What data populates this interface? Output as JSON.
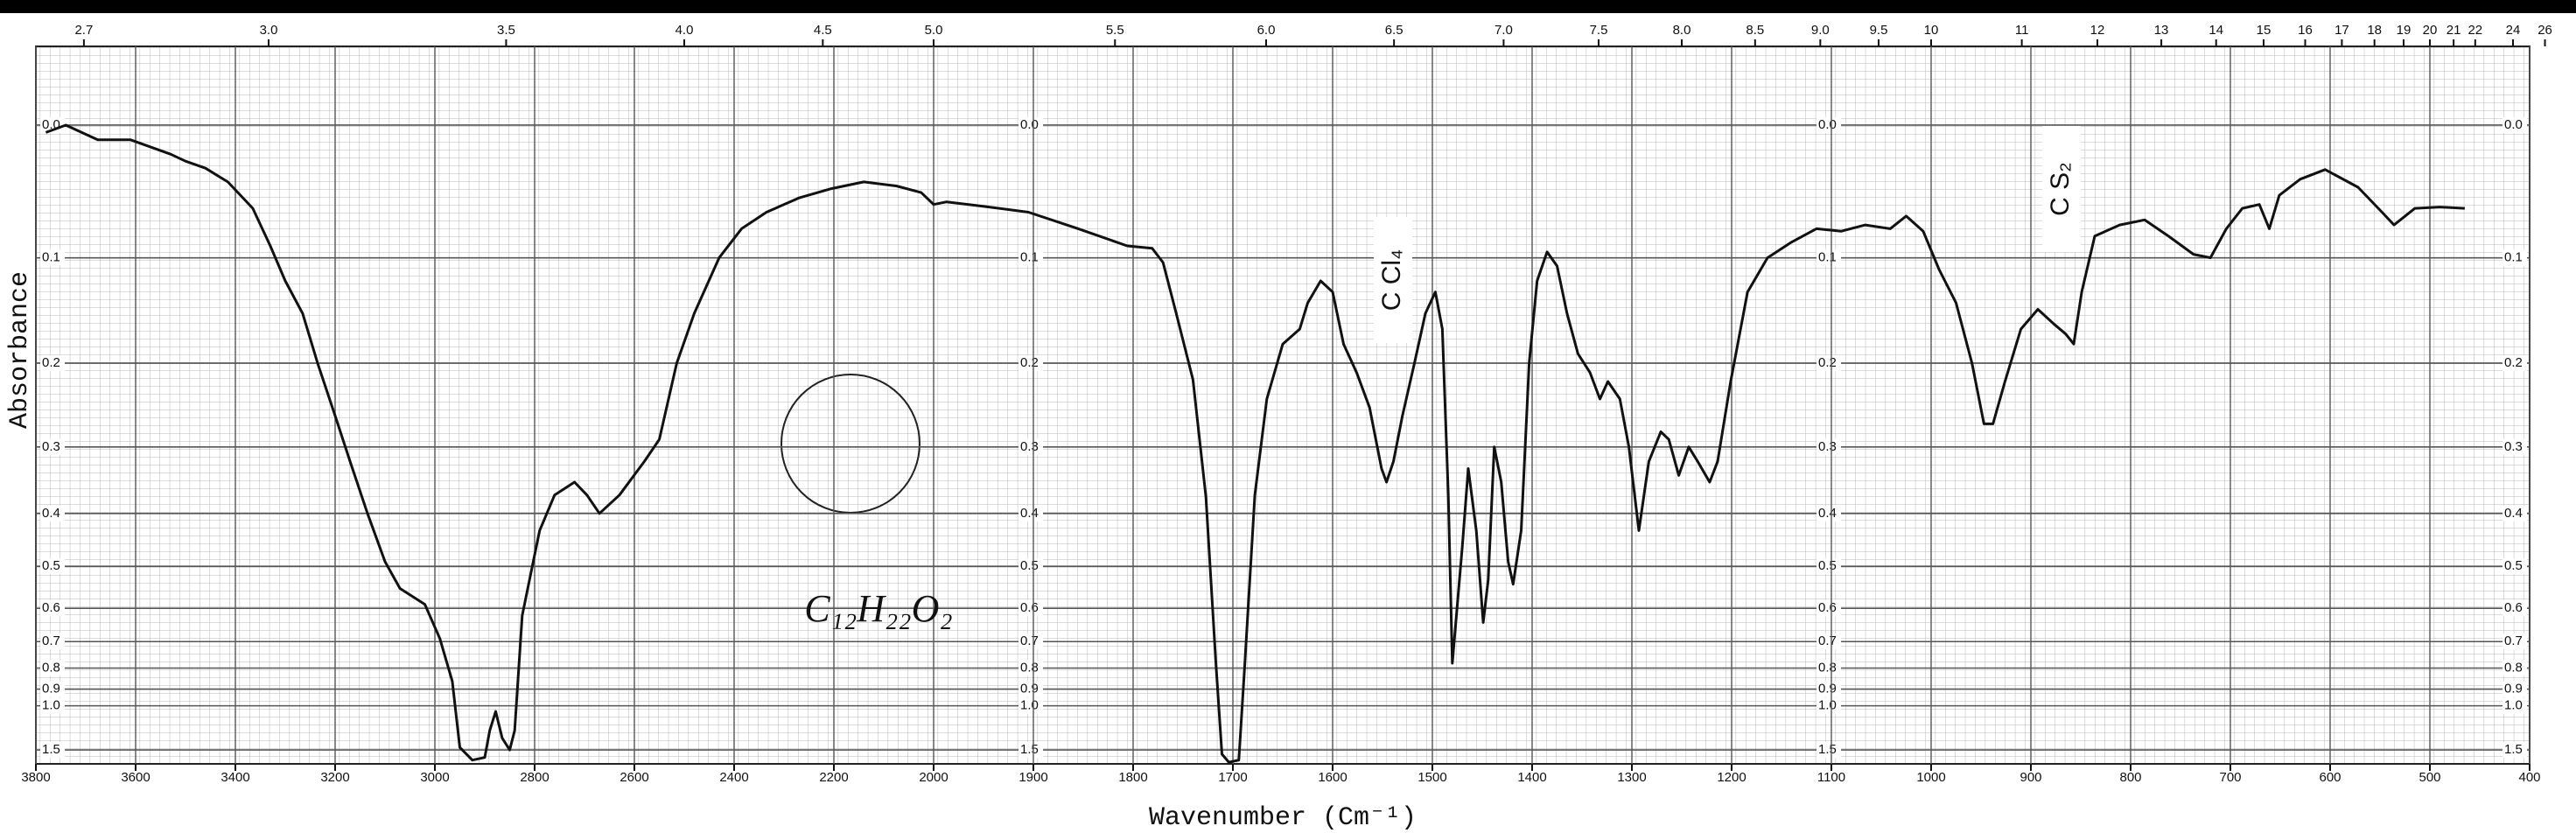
{
  "chart_data": {
    "type": "line",
    "xlabel": "Wavenumber (Cm⁻¹)",
    "ylabel": "Absorbance",
    "annotations": [
      "C Cl₄",
      "C S₂",
      "C₁₂H₂₂O₂"
    ],
    "color": "#111111",
    "grid": true,
    "yscale": "transmittance",
    "x_break": 2000,
    "xlim": [
      3800,
      400
    ],
    "ylim": [
      2,
      -0.05
    ],
    "xticks": [
      3800,
      3600,
      3400,
      3200,
      3000,
      2800,
      2600,
      2400,
      2200,
      2000,
      1900,
      1800,
      1700,
      1600,
      1500,
      1400,
      1300,
      1200,
      1100,
      1000,
      900,
      800,
      700,
      600,
      500,
      400
    ],
    "yticks": [
      {
        "value": 0,
        "label": "0.0"
      },
      0.1,
      0.2,
      0.3,
      0.4,
      0.5,
      0.6,
      0.7,
      0.8,
      0.9,
      {
        "value": 1,
        "label": "1.0"
      },
      1.5
    ],
    "x2ticks": [
      2.7,
      {
        "value": 3,
        "label": "3.0"
      },
      3.5,
      {
        "value": 4,
        "label": "4.0"
      },
      4.5,
      {
        "value": 5,
        "label": "5.0"
      },
      5.5,
      {
        "value": 6,
        "label": "6.0"
      },
      6.5,
      {
        "value": 7,
        "label": "7.0"
      },
      7.5,
      {
        "value": 8,
        "label": "8.0"
      },
      8.5,
      {
        "value": 9,
        "label": "9.0"
      },
      9.5,
      10,
      11,
      12,
      13,
      14,
      15,
      16,
      17,
      18,
      19,
      20,
      21,
      22,
      24,
      26
    ],
    "x": [
      3780,
      3740,
      3676,
      3610,
      3530,
      3500,
      3460,
      3415,
      3365,
      3330,
      3300,
      3265,
      3235,
      3200,
      3170,
      3135,
      3100,
      3070,
      3020,
      2990,
      2965,
      2950,
      2925,
      2900,
      2890,
      2878,
      2865,
      2850,
      2840,
      2825,
      2790,
      2760,
      2720,
      2695,
      2670,
      2630,
      2580,
      2550,
      2515,
      2480,
      2430,
      2385,
      2335,
      2270,
      2205,
      2140,
      2075,
      2025,
      2000,
      1987,
      1954,
      1905,
      1855,
      1806,
      1781,
      1770,
      1757,
      1740,
      1727,
      1717,
      1711,
      1704,
      1694,
      1688,
      1678,
      1666,
      1650,
      1633,
      1625,
      1612,
      1600,
      1589,
      1576,
      1563,
      1551,
      1546,
      1539,
      1530,
      1518,
      1507,
      1497,
      1490,
      1484,
      1480,
      1470,
      1464,
      1456,
      1449,
      1444,
      1438,
      1431,
      1424,
      1419,
      1411,
      1403,
      1395,
      1385,
      1375,
      1365,
      1354,
      1342,
      1332,
      1324,
      1312,
      1303,
      1293,
      1283,
      1271,
      1263,
      1253,
      1243,
      1234,
      1222,
      1214,
      1201,
      1184,
      1164,
      1140,
      1115,
      1090,
      1066,
      1041,
      1025,
      1008,
      992,
      975,
      959,
      947,
      938,
      926,
      910,
      893,
      877,
      865,
      857,
      849,
      836,
      811,
      786,
      762,
      737,
      720,
      704,
      688,
      671,
      661,
      651,
      630,
      605,
      572,
      548,
      536,
      515,
      490,
      465
    ],
    "values": [
      0.005,
      0,
      0.01,
      0.01,
      0.02,
      0.025,
      0.03,
      0.04,
      0.06,
      0.09,
      0.12,
      0.15,
      0.2,
      0.26,
      0.32,
      0.4,
      0.49,
      0.55,
      0.59,
      0.69,
      0.86,
      1.45,
      1.8,
      1.7,
      1.21,
      1.04,
      1.3,
      1.5,
      1.21,
      0.62,
      0.43,
      0.37,
      0.35,
      0.37,
      0.4,
      0.37,
      0.32,
      0.29,
      0.2,
      0.15,
      0.1,
      0.076,
      0.063,
      0.052,
      0.045,
      0.04,
      0.043,
      0.048,
      0.057,
      0.055,
      0.058,
      0.063,
      0.076,
      0.09,
      0.092,
      0.104,
      0.149,
      0.218,
      0.373,
      0.78,
      1.6,
      1.9,
      1.8,
      0.78,
      0.37,
      0.24,
      0.18,
      0.165,
      0.14,
      0.12,
      0.13,
      0.18,
      0.21,
      0.25,
      0.33,
      0.35,
      0.32,
      0.26,
      0.2,
      0.15,
      0.13,
      0.165,
      0.37,
      0.78,
      0.46,
      0.33,
      0.43,
      0.64,
      0.53,
      0.3,
      0.35,
      0.49,
      0.54,
      0.43,
      0.2,
      0.12,
      0.095,
      0.107,
      0.15,
      0.19,
      0.21,
      0.24,
      0.22,
      0.24,
      0.3,
      0.43,
      0.32,
      0.28,
      0.29,
      0.34,
      0.3,
      0.32,
      0.35,
      0.32,
      0.22,
      0.13,
      0.1,
      0.087,
      0.076,
      0.078,
      0.073,
      0.076,
      0.066,
      0.078,
      0.11,
      0.14,
      0.2,
      0.27,
      0.27,
      0.22,
      0.165,
      0.146,
      0.16,
      0.17,
      0.18,
      0.13,
      0.082,
      0.073,
      0.069,
      0.082,
      0.097,
      0.1,
      0.076,
      0.06,
      0.057,
      0.076,
      0.05,
      0.038,
      0.031,
      0.044,
      0.063,
      0.073,
      0.06,
      0.059,
      0.06
    ]
  }
}
